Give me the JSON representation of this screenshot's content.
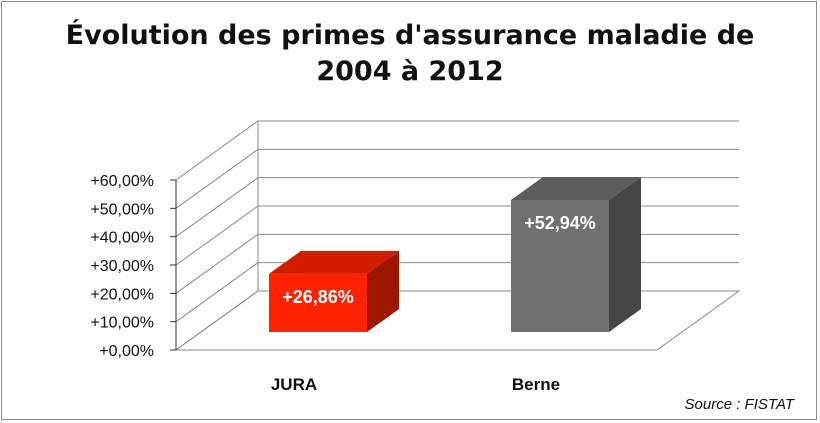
{
  "chart_data": {
    "type": "bar",
    "title": "Évolution des primes d'assurance maladie de 2004 à 2012",
    "categories": [
      "JURA",
      "Berne"
    ],
    "values": [
      26.86,
      52.94
    ],
    "data_labels": [
      "+26,86%",
      "+52,94%"
    ],
    "ylim": [
      0,
      60
    ],
    "yticks": [
      "+0,00%",
      "+10,00%",
      "+20,00%",
      "+30,00%",
      "+40,00%",
      "+50,00%",
      "+60,00%"
    ],
    "grid": true,
    "three_d": true,
    "colors": [
      "#ff2200",
      "#707070"
    ],
    "source": "Source : FISTAT"
  }
}
